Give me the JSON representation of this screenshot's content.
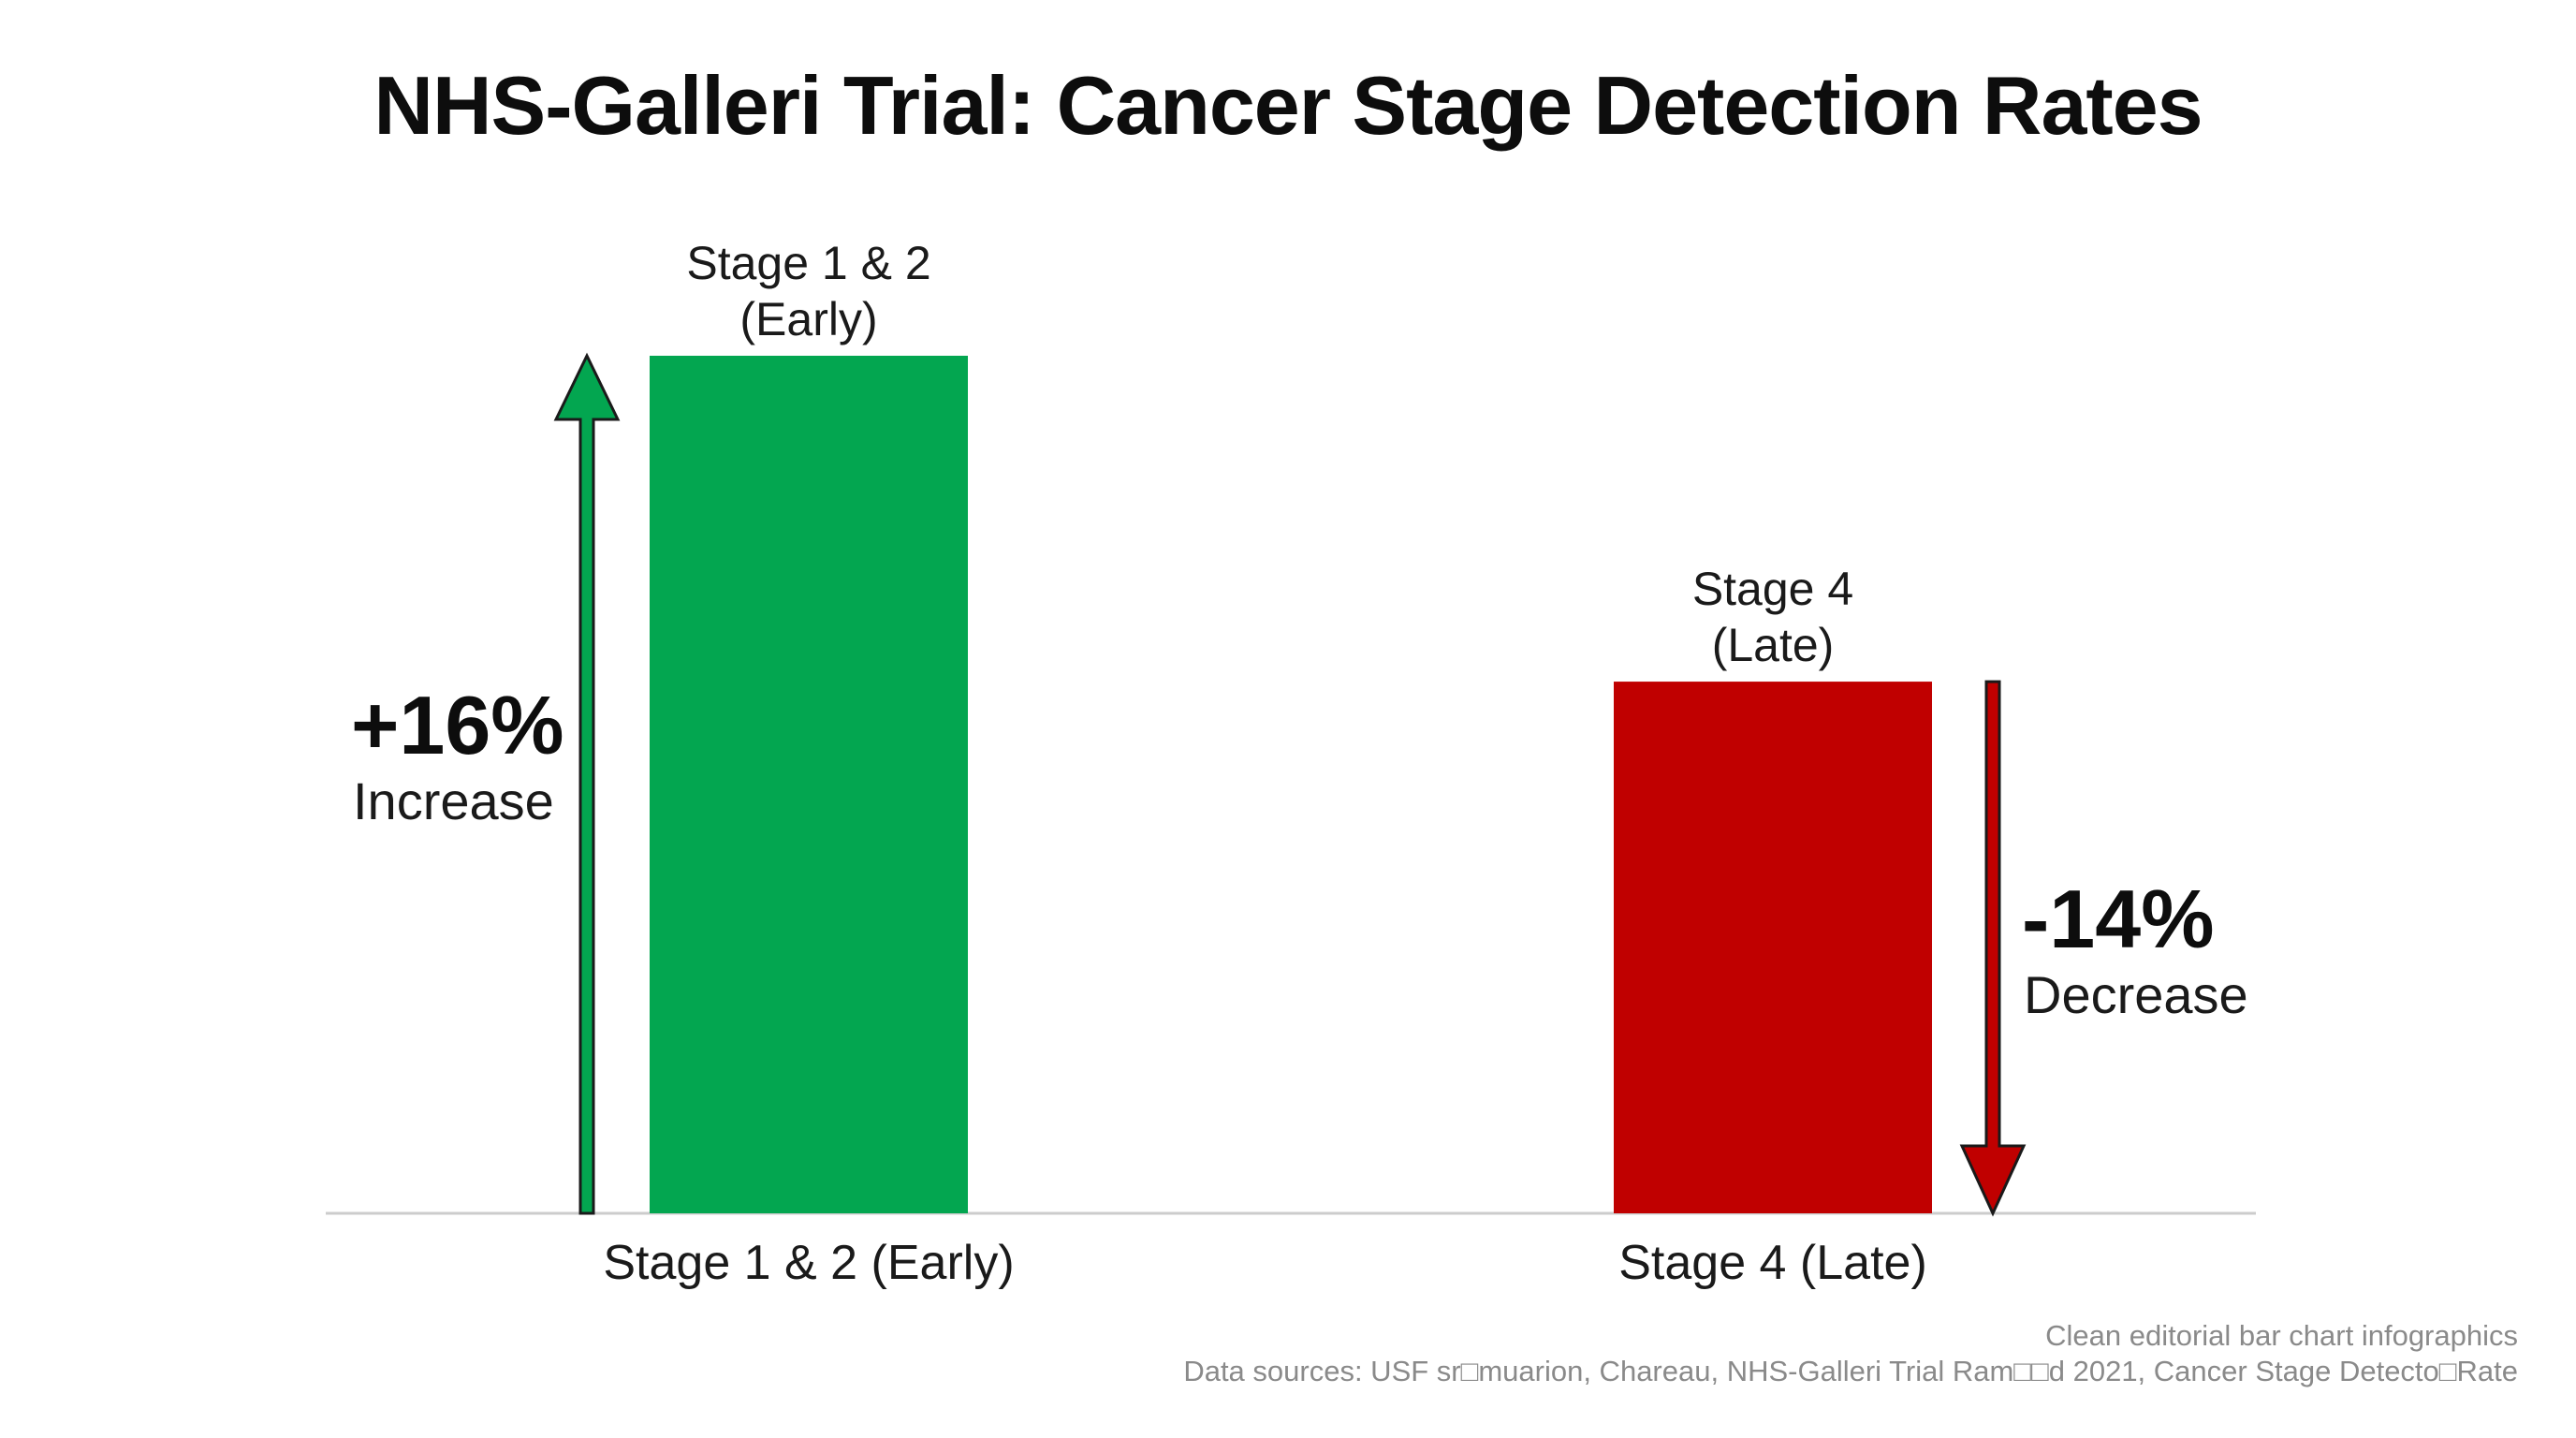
{
  "title": "NHS-Galleri Trial: Cancer Stage Detection Rates",
  "chart_data": {
    "type": "bar",
    "title": "NHS-Galleri Trial: Cancer Stage Detection Rates",
    "categories": [
      "Stage 1 & 2 (Early)",
      "Stage 4 (Late)"
    ],
    "bar_labels": [
      [
        "Stage 1 & 2",
        "(Early)"
      ],
      [
        "Stage 4",
        "(Late)"
      ]
    ],
    "values": [
      100,
      62
    ],
    "colors": [
      "#03a650",
      "#c00000"
    ],
    "changes": [
      {
        "value": "+16%",
        "word": "Increase",
        "direction": "up",
        "color": "#03a650"
      },
      {
        "value": "-14%",
        "word": "Decrease",
        "direction": "down",
        "color": "#c00000"
      }
    ],
    "ylim": [
      0,
      100
    ],
    "grid": false,
    "axis_line_color": "#cccccc"
  },
  "footer": {
    "line1": "Clean editorial bar chart infographics",
    "line2": "Data sources: USF sr□muarion, Chareau, NHS-Galleri Trial Ram□□d 2021, Cancer Stage Detecto□Rate"
  }
}
